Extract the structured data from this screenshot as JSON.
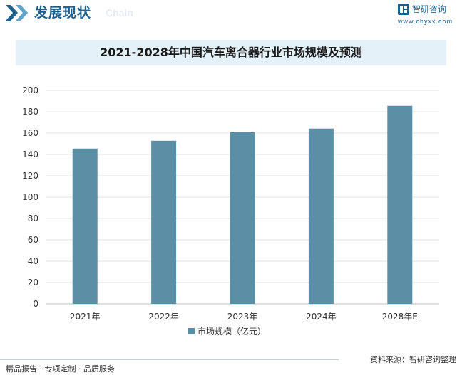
{
  "header": {
    "title": "发展现状",
    "subtitle": "Chain",
    "brand_name": "智研咨询",
    "brand_url": "www.chyxx.com"
  },
  "chart_data": {
    "type": "bar",
    "title": "2021-2028年中国汽车离合器行业市场规模及预测",
    "categories": [
      "2021年",
      "2022年",
      "2023年",
      "2024年",
      "2028年E"
    ],
    "series": [
      {
        "name": "市场规模（亿元）",
        "values": [
          145.5,
          152.8,
          160.8,
          164.2,
          185.5
        ]
      }
    ],
    "ylim": [
      0,
      200
    ],
    "yticks": [
      0,
      20,
      40,
      60,
      80,
      100,
      120,
      140,
      160,
      180,
      200
    ],
    "grid": true,
    "legend": "bottom",
    "bar_color": "#5b8fa6"
  },
  "footer": {
    "left": "精品报告 · 专项定制 · 品质服务",
    "right": "资料来源：智研咨询整理"
  }
}
